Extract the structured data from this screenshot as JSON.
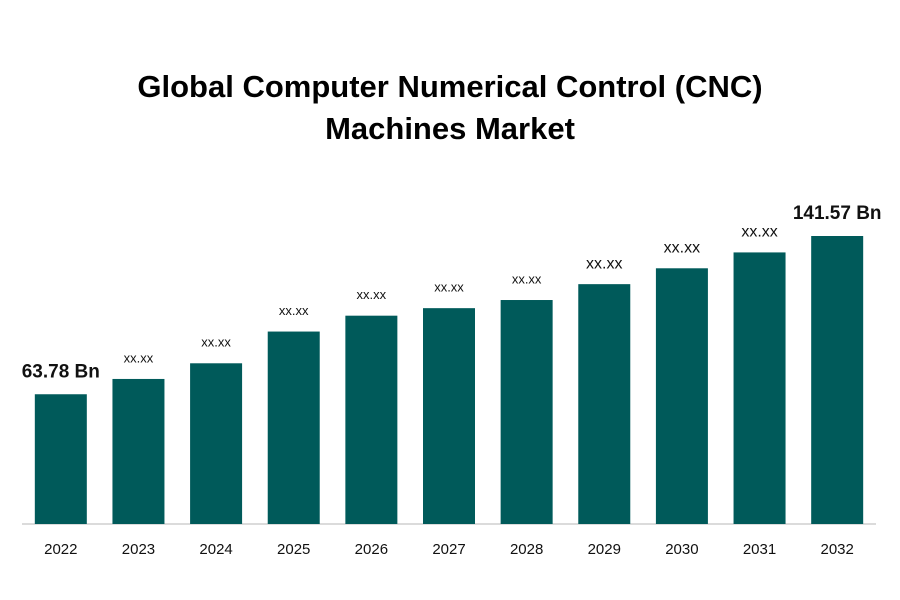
{
  "chart_data": {
    "type": "bar",
    "title": "Global Computer Numerical Control (CNC) Machines Market",
    "categories": [
      "2022",
      "2023",
      "2024",
      "2025",
      "2026",
      "2027",
      "2028",
      "2029",
      "2030",
      "2031",
      "2032"
    ],
    "values": [
      63.78,
      71.3,
      79.0,
      94.6,
      102.4,
      106.1,
      110.1,
      117.9,
      125.7,
      133.5,
      141.57
    ],
    "value_labels": [
      "63.78 Bn",
      "xx.xx",
      "xx.xx",
      "xx.xx",
      "xx.xx",
      "xx.xx",
      "xx.xx",
      "xx.xx",
      "xx.xx",
      "xx.xx",
      "141.57 Bn"
    ],
    "color": "#005a5a"
  }
}
